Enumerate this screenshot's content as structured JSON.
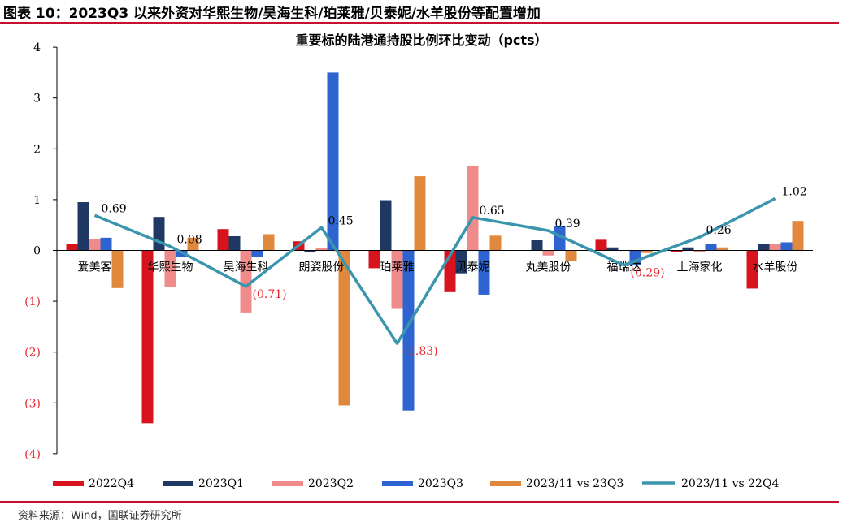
{
  "figure_title": "图表 10：2023Q3 以来外资对华熙生物/昊海生科/珀莱雅/贝泰妮/水羊股份等配置增加",
  "source": "资料来源：Wind，国联证券研究所",
  "colors": {
    "2022Q4": "#d7141e",
    "2023Q1": "#1f3864",
    "2023Q2": "#ef8b8b",
    "2023Q3": "#2e64d0",
    "2023/11 vs 23Q3": "#e0883c",
    "2023/11 vs 22Q4": "#3a95ad",
    "negative_label": "#e8262b",
    "rule": "#c8102e"
  },
  "chart_data": {
    "type": "bar",
    "title": "重要标的陆港通持股比例环比变动（pcts）",
    "xlabel": "",
    "ylabel": "",
    "ylim": [
      -4,
      4
    ],
    "yticks": [
      -4,
      -3,
      -2,
      -1,
      0,
      1,
      2,
      3,
      4
    ],
    "ytick_labels": [
      "(4)",
      "(3)",
      "(2)",
      "(1)",
      "0",
      "1",
      "2",
      "3",
      "4"
    ],
    "categories": [
      "爱美客",
      "华熙生物",
      "昊海生科",
      "朗姿股份",
      "珀莱雅",
      "贝泰妮",
      "丸美股份",
      "福瑞达",
      "上海家化",
      "水羊股份"
    ],
    "series": [
      {
        "name": "2022Q4",
        "type": "bar",
        "values": [
          0.12,
          -3.4,
          0.42,
          0.18,
          -0.35,
          -0.82,
          0.0,
          0.21,
          -0.03,
          -0.75
        ]
      },
      {
        "name": "2023Q1",
        "type": "bar",
        "values": [
          0.95,
          0.66,
          0.28,
          -0.03,
          0.99,
          -0.45,
          0.2,
          0.06,
          0.06,
          0.12
        ]
      },
      {
        "name": "2023Q2",
        "type": "bar",
        "values": [
          0.22,
          -0.72,
          -1.22,
          0.05,
          -1.15,
          1.67,
          -0.1,
          0.0,
          -0.03,
          0.13
        ]
      },
      {
        "name": "2023Q3",
        "type": "bar",
        "values": [
          0.25,
          -0.12,
          -0.12,
          3.5,
          -3.15,
          -0.87,
          0.48,
          -0.28,
          0.13,
          0.16
        ]
      },
      {
        "name": "2023/11 vs 23Q3",
        "type": "bar",
        "values": [
          -0.74,
          0.25,
          0.32,
          -3.05,
          1.46,
          0.29,
          -0.2,
          -0.05,
          0.06,
          0.58
        ]
      },
      {
        "name": "2023/11 vs 22Q4",
        "type": "line",
        "values": [
          0.69,
          0.08,
          -0.71,
          0.45,
          -1.83,
          0.65,
          0.39,
          -0.29,
          0.26,
          1.02
        ]
      }
    ],
    "data_labels": [
      "0.69",
      "0.08",
      "(0.71)",
      "0.45",
      "(1.83)",
      "0.65",
      "0.39",
      "(0.29)",
      "0.26",
      "1.02"
    ],
    "legend": [
      "2022Q4",
      "2023Q1",
      "2023Q2",
      "2023Q3",
      "2023/11 vs 23Q3",
      "2023/11 vs 22Q4"
    ],
    "legend_position": "bottom"
  }
}
